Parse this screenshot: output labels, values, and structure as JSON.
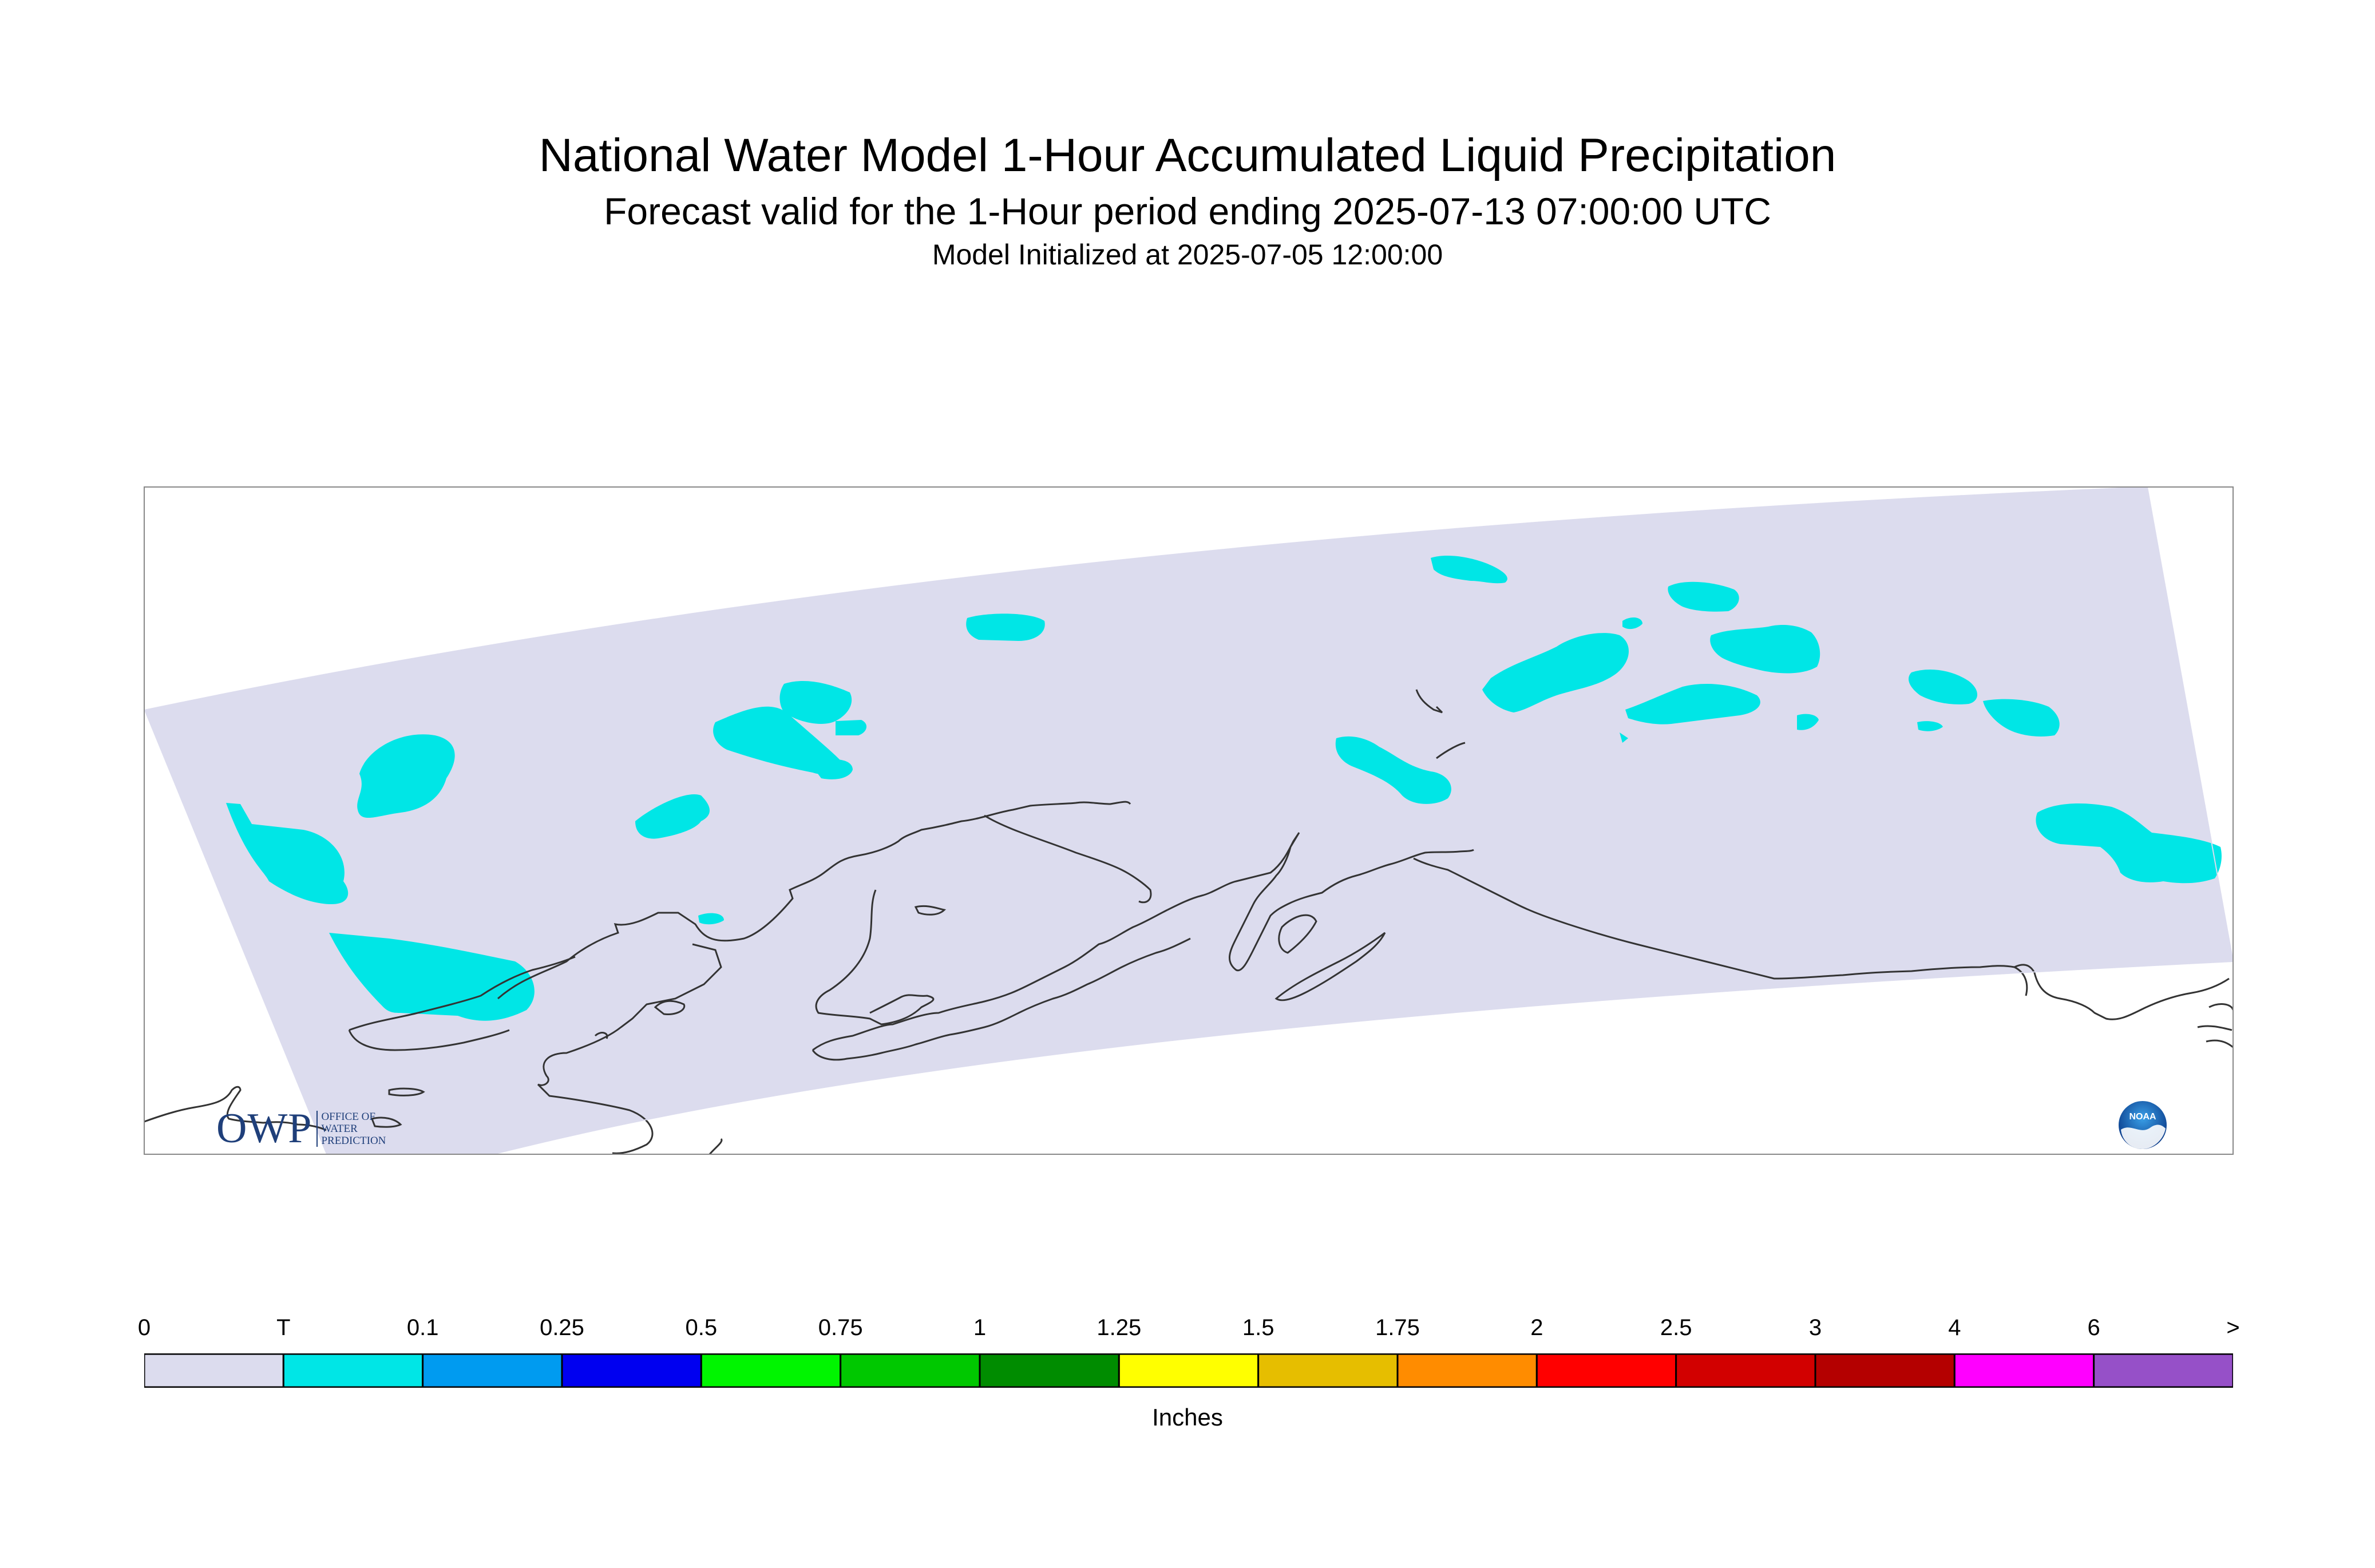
{
  "title": {
    "line1": "National Water Model 1-Hour Accumulated Liquid Precipitation",
    "line2": "Forecast valid for the 1-Hour period ending 2025-07-13 07:00:00 UTC",
    "line3": "Model Initialized at 2025-07-05 12:00:00"
  },
  "logos": {
    "owp_big": "OWP",
    "owp_small": [
      "OFFICE OF",
      "WATER",
      "PREDICTION"
    ],
    "noaa": "NOAA"
  },
  "legend": {
    "labels": [
      "0",
      "T",
      "0.1",
      "0.25",
      "0.5",
      "0.75",
      "1",
      "1.25",
      "1.5",
      "1.75",
      "2",
      "2.5",
      "3",
      "4",
      "6",
      ">"
    ],
    "colors": [
      "#dcdcee",
      "#00e6e6",
      "#009bf0",
      "#0000f0",
      "#00f500",
      "#00c800",
      "#008c00",
      "#ffff00",
      "#e6be00",
      "#ff8c00",
      "#ff0000",
      "#d20000",
      "#b40000",
      "#ff00ff",
      "#9650c8"
    ],
    "units": "Inches"
  },
  "map": {
    "domain_color": "#dcdcee",
    "precip_color": "#00e6e6",
    "coast_color": "#333333",
    "frame_color": "#888888"
  }
}
